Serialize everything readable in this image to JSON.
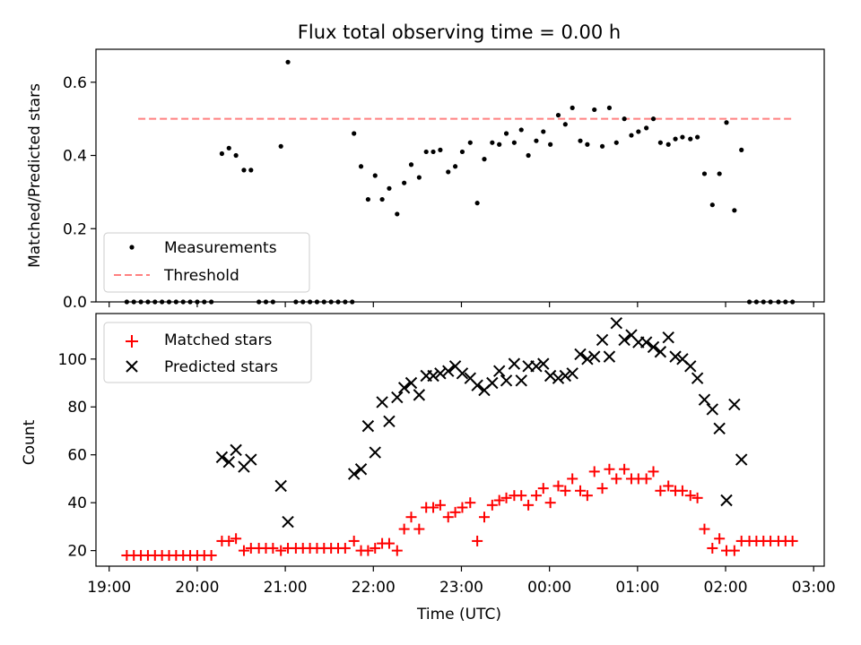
{
  "chart_data": [
    {
      "type": "scatter",
      "title": "Flux total observing time = 0.00 h",
      "xlabel": "",
      "ylabel": "Matched/Predicted stars",
      "ylim": [
        0,
        0.69
      ],
      "yticks": [
        "0.0",
        "0.2",
        "0.4",
        "0.6"
      ],
      "grid": false,
      "legend_position": "lower-left",
      "threshold": {
        "name": "Threshold",
        "value": 0.5,
        "x_range": [
          19.33,
          26.75
        ],
        "color": "#ff8080"
      },
      "series": [
        {
          "name": "Measurements",
          "color": "#000000",
          "points": [
            [
              19.2,
              0
            ],
            [
              19.28,
              0
            ],
            [
              19.36,
              0
            ],
            [
              19.44,
              0
            ],
            [
              19.52,
              0
            ],
            [
              19.6,
              0
            ],
            [
              19.68,
              0
            ],
            [
              19.76,
              0
            ],
            [
              19.84,
              0
            ],
            [
              19.92,
              0
            ],
            [
              20.0,
              0
            ],
            [
              20.08,
              0
            ],
            [
              20.16,
              0
            ],
            [
              20.28,
              0.405
            ],
            [
              20.36,
              0.42
            ],
            [
              20.44,
              0.4
            ],
            [
              20.53,
              0.36
            ],
            [
              20.61,
              0.36
            ],
            [
              20.7,
              0
            ],
            [
              20.78,
              0
            ],
            [
              20.86,
              0
            ],
            [
              20.95,
              0.425
            ],
            [
              21.03,
              0.655
            ],
            [
              21.12,
              0
            ],
            [
              21.2,
              0
            ],
            [
              21.28,
              0
            ],
            [
              21.36,
              0
            ],
            [
              21.44,
              0
            ],
            [
              21.52,
              0
            ],
            [
              21.6,
              0
            ],
            [
              21.68,
              0
            ],
            [
              21.76,
              0
            ],
            [
              21.78,
              0.46
            ],
            [
              21.86,
              0.37
            ],
            [
              21.94,
              0.28
            ],
            [
              22.02,
              0.345
            ],
            [
              22.1,
              0.28
            ],
            [
              22.18,
              0.31
            ],
            [
              22.27,
              0.24
            ],
            [
              22.35,
              0.325
            ],
            [
              22.43,
              0.375
            ],
            [
              22.52,
              0.34
            ],
            [
              22.6,
              0.41
            ],
            [
              22.68,
              0.41
            ],
            [
              22.76,
              0.415
            ],
            [
              22.85,
              0.355
            ],
            [
              22.93,
              0.37
            ],
            [
              23.01,
              0.41
            ],
            [
              23.1,
              0.435
            ],
            [
              23.18,
              0.27
            ],
            [
              23.26,
              0.39
            ],
            [
              23.35,
              0.435
            ],
            [
              23.43,
              0.43
            ],
            [
              23.51,
              0.46
            ],
            [
              23.6,
              0.435
            ],
            [
              23.68,
              0.47
            ],
            [
              23.76,
              0.4
            ],
            [
              23.85,
              0.44
            ],
            [
              23.93,
              0.465
            ],
            [
              24.01,
              0.43
            ],
            [
              24.1,
              0.51
            ],
            [
              24.18,
              0.485
            ],
            [
              24.26,
              0.53
            ],
            [
              24.35,
              0.44
            ],
            [
              24.43,
              0.43
            ],
            [
              24.51,
              0.525
            ],
            [
              24.6,
              0.425
            ],
            [
              24.68,
              0.53
            ],
            [
              24.76,
              0.435
            ],
            [
              24.85,
              0.5
            ],
            [
              24.93,
              0.455
            ],
            [
              25.01,
              0.465
            ],
            [
              25.1,
              0.475
            ],
            [
              25.18,
              0.5
            ],
            [
              25.26,
              0.435
            ],
            [
              25.35,
              0.43
            ],
            [
              25.43,
              0.445
            ],
            [
              25.51,
              0.45
            ],
            [
              25.6,
              0.445
            ],
            [
              25.68,
              0.45
            ],
            [
              25.76,
              0.35
            ],
            [
              25.85,
              0.265
            ],
            [
              25.93,
              0.35
            ],
            [
              26.01,
              0.49
            ],
            [
              26.1,
              0.25
            ],
            [
              26.18,
              0.415
            ],
            [
              26.27,
              0
            ],
            [
              26.35,
              0
            ],
            [
              26.43,
              0
            ],
            [
              26.51,
              0
            ],
            [
              26.6,
              0
            ],
            [
              26.68,
              0
            ],
            [
              26.76,
              0
            ]
          ]
        }
      ]
    },
    {
      "type": "scatter",
      "title": "",
      "xlabel": "Time (UTC)",
      "ylabel": "Count",
      "ylim": [
        13.5,
        119
      ],
      "yticks": [
        "20",
        "40",
        "60",
        "80",
        "100"
      ],
      "xticks": [
        "19:00",
        "20:00",
        "21:00",
        "22:00",
        "23:00",
        "00:00",
        "01:00",
        "02:00",
        "03:00"
      ],
      "xlim_hours": [
        18.85,
        27.12
      ],
      "grid": false,
      "legend_position": "upper-left",
      "series": [
        {
          "name": "Matched stars",
          "marker": "plus",
          "color": "#ff0000",
          "points": [
            [
              19.2,
              18
            ],
            [
              19.28,
              18
            ],
            [
              19.36,
              18
            ],
            [
              19.44,
              18
            ],
            [
              19.52,
              18
            ],
            [
              19.6,
              18
            ],
            [
              19.68,
              18
            ],
            [
              19.76,
              18
            ],
            [
              19.84,
              18
            ],
            [
              19.92,
              18
            ],
            [
              20.0,
              18
            ],
            [
              20.08,
              18
            ],
            [
              20.16,
              18
            ],
            [
              20.28,
              24
            ],
            [
              20.36,
              24
            ],
            [
              20.44,
              25
            ],
            [
              20.53,
              20
            ],
            [
              20.61,
              21
            ],
            [
              20.7,
              21
            ],
            [
              20.78,
              21
            ],
            [
              20.86,
              21
            ],
            [
              20.95,
              20
            ],
            [
              21.03,
              21
            ],
            [
              21.12,
              21
            ],
            [
              21.2,
              21
            ],
            [
              21.28,
              21
            ],
            [
              21.36,
              21
            ],
            [
              21.44,
              21
            ],
            [
              21.52,
              21
            ],
            [
              21.6,
              21
            ],
            [
              21.68,
              21
            ],
            [
              21.78,
              24
            ],
            [
              21.86,
              20
            ],
            [
              21.94,
              20
            ],
            [
              22.02,
              21
            ],
            [
              22.1,
              23
            ],
            [
              22.18,
              23
            ],
            [
              22.27,
              20
            ],
            [
              22.35,
              29
            ],
            [
              22.43,
              34
            ],
            [
              22.52,
              29
            ],
            [
              22.6,
              38
            ],
            [
              22.68,
              38
            ],
            [
              22.76,
              39
            ],
            [
              22.85,
              34
            ],
            [
              22.93,
              36
            ],
            [
              23.01,
              38
            ],
            [
              23.1,
              40
            ],
            [
              23.18,
              24
            ],
            [
              23.26,
              34
            ],
            [
              23.35,
              39
            ],
            [
              23.43,
              41
            ],
            [
              23.51,
              42
            ],
            [
              23.6,
              43
            ],
            [
              23.68,
              43
            ],
            [
              23.76,
              39
            ],
            [
              23.85,
              43
            ],
            [
              23.93,
              46
            ],
            [
              24.01,
              40
            ],
            [
              24.1,
              47
            ],
            [
              24.18,
              45
            ],
            [
              24.26,
              50
            ],
            [
              24.35,
              45
            ],
            [
              24.43,
              43
            ],
            [
              24.51,
              53
            ],
            [
              24.6,
              46
            ],
            [
              24.68,
              54
            ],
            [
              24.76,
              50
            ],
            [
              24.85,
              54
            ],
            [
              24.93,
              50
            ],
            [
              25.01,
              50
            ],
            [
              25.1,
              50
            ],
            [
              25.18,
              53
            ],
            [
              25.26,
              45
            ],
            [
              25.35,
              47
            ],
            [
              25.43,
              45
            ],
            [
              25.51,
              45
            ],
            [
              25.6,
              43
            ],
            [
              25.68,
              42
            ],
            [
              25.76,
              29
            ],
            [
              25.85,
              21
            ],
            [
              25.93,
              25
            ],
            [
              26.01,
              20
            ],
            [
              26.1,
              20
            ],
            [
              26.18,
              24
            ],
            [
              26.27,
              24
            ],
            [
              26.35,
              24
            ],
            [
              26.43,
              24
            ],
            [
              26.51,
              24
            ],
            [
              26.6,
              24
            ],
            [
              26.68,
              24
            ],
            [
              26.76,
              24
            ]
          ]
        },
        {
          "name": "Predicted stars",
          "marker": "x",
          "color": "#000000",
          "points": [
            [
              20.28,
              59
            ],
            [
              20.36,
              57
            ],
            [
              20.44,
              62
            ],
            [
              20.53,
              55
            ],
            [
              20.61,
              58
            ],
            [
              20.95,
              47
            ],
            [
              21.03,
              32
            ],
            [
              21.78,
              52
            ],
            [
              21.86,
              54
            ],
            [
              21.94,
              72
            ],
            [
              22.02,
              61
            ],
            [
              22.1,
              82
            ],
            [
              22.18,
              74
            ],
            [
              22.27,
              84
            ],
            [
              22.35,
              88
            ],
            [
              22.43,
              90
            ],
            [
              22.52,
              85
            ],
            [
              22.6,
              93
            ],
            [
              22.68,
              93
            ],
            [
              22.76,
              94
            ],
            [
              22.85,
              95
            ],
            [
              22.93,
              97
            ],
            [
              23.01,
              94
            ],
            [
              23.1,
              92
            ],
            [
              23.18,
              89
            ],
            [
              23.26,
              87
            ],
            [
              23.35,
              90
            ],
            [
              23.43,
              95
            ],
            [
              23.51,
              91
            ],
            [
              23.6,
              98
            ],
            [
              23.68,
              91
            ],
            [
              23.76,
              97
            ],
            [
              23.85,
              97
            ],
            [
              23.93,
              98
            ],
            [
              24.01,
              93
            ],
            [
              24.1,
              92
            ],
            [
              24.18,
              93
            ],
            [
              24.26,
              94
            ],
            [
              24.35,
              102
            ],
            [
              24.43,
              100
            ],
            [
              24.51,
              101
            ],
            [
              24.6,
              108
            ],
            [
              24.68,
              101
            ],
            [
              24.76,
              115
            ],
            [
              24.85,
              108
            ],
            [
              24.93,
              110
            ],
            [
              25.01,
              107
            ],
            [
              25.1,
              107
            ],
            [
              25.18,
              105
            ],
            [
              25.26,
              103
            ],
            [
              25.35,
              109
            ],
            [
              25.43,
              101
            ],
            [
              25.51,
              100
            ],
            [
              25.6,
              97
            ],
            [
              25.68,
              92
            ],
            [
              25.76,
              83
            ],
            [
              25.85,
              79
            ],
            [
              25.93,
              71
            ],
            [
              26.01,
              41
            ],
            [
              26.1,
              81
            ],
            [
              26.18,
              58
            ]
          ]
        }
      ]
    }
  ]
}
